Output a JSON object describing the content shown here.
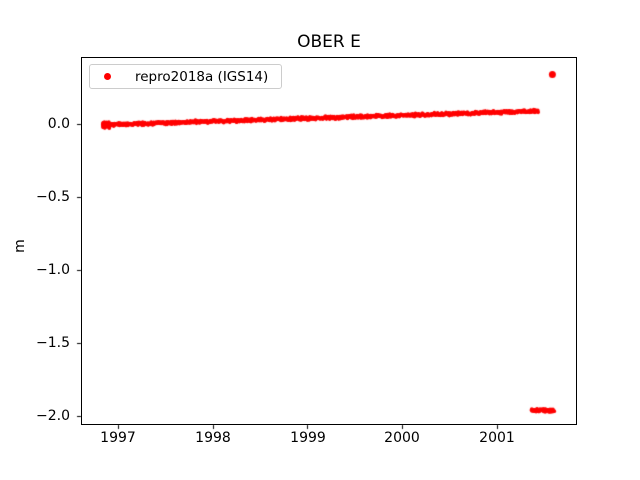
{
  "chart_data": {
    "type": "scatter",
    "title": "OBER E",
    "xlabel": "",
    "ylabel": "m",
    "grid": false,
    "xlim": [
      1996.61,
      2001.85
    ],
    "ylim": [
      -2.06,
      0.46
    ],
    "x_ticks": [
      1997,
      1998,
      1999,
      2000,
      2001
    ],
    "x_tick_labels": [
      "1997",
      "1998",
      "1999",
      "2000",
      "2001"
    ],
    "y_ticks": [
      0.0,
      -0.5,
      -1.0,
      -1.5,
      -2.0
    ],
    "y_tick_labels": [
      "0.0",
      "−0.5",
      "−1.0",
      "−1.5",
      "−2.0"
    ],
    "legend": {
      "position": "upper left",
      "entries": [
        {
          "label": "repro2018a (IGS14)",
          "marker": "dot",
          "color": "#ff0000"
        }
      ]
    },
    "series": [
      {
        "name": "repro2018a (IGS14)",
        "color": "#ff0000",
        "marker": "dot",
        "clusters": [
          {
            "kind": "trend-band",
            "x_start": 1996.84,
            "x_end": 2001.44,
            "y_start": -0.005,
            "y_end": 0.09,
            "y_jitter": 0.013,
            "points": 1200,
            "description": "dense daily solutions rising slowly from ~0.0 m to ~0.09 m"
          },
          {
            "kind": "blob",
            "x_start": 1996.84,
            "x_end": 1996.91,
            "y_center": -0.005,
            "y_jitter": 0.028,
            "points": 50,
            "description": "thicker scatter blob at series start"
          },
          {
            "kind": "blob",
            "x_start": 2001.37,
            "x_end": 2001.61,
            "y_center": -1.96,
            "y_jitter": 0.011,
            "points": 90,
            "description": "outlier cluster near -1.96 m"
          },
          {
            "kind": "point",
            "x": 2001.59,
            "y": 0.34,
            "description": "single high outlier at ~+0.34 m"
          }
        ]
      }
    ]
  }
}
